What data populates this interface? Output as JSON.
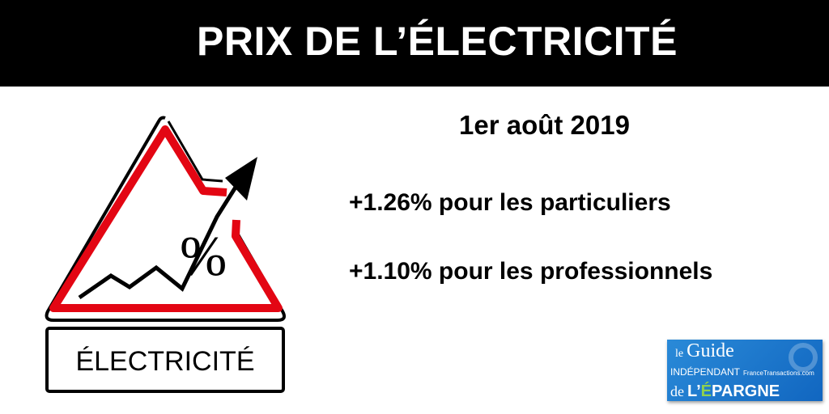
{
  "header": {
    "title": "PRIX DE L’ÉLECTRICITÉ"
  },
  "main": {
    "date": "1er août 2019",
    "lines": [
      "+1.26% pour les particuliers",
      "+1.10% pour les professionnels"
    ]
  },
  "sign": {
    "label": "ÉLECTRICITÉ",
    "percent": "%",
    "colors": {
      "red": "#e30613",
      "black": "#000000"
    }
  },
  "logo": {
    "le": "le",
    "guide": "Guide",
    "independant": "INDÉPENDANT",
    "de": "de",
    "epargne_prefix": "L’",
    "epargne_e": "É",
    "epargne_rest": "PARGNE",
    "francetransactions": "FranceTransactions.com",
    "colors": {
      "background": "#1a78cc",
      "accent": "#8fd14f"
    }
  }
}
